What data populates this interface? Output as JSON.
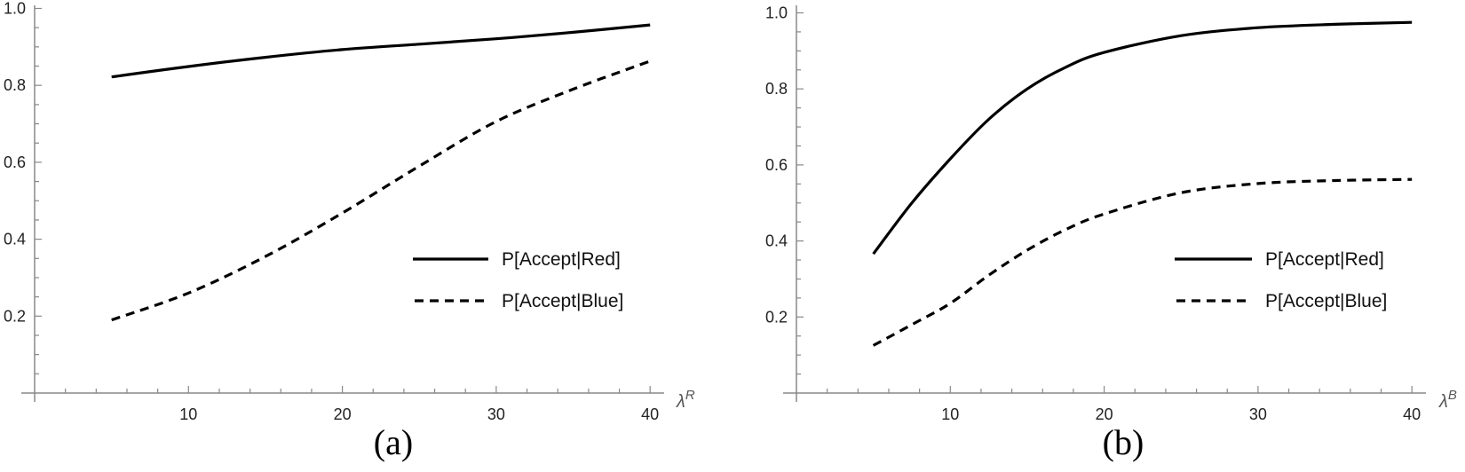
{
  "chart_data": [
    {
      "type": "line",
      "panel": "a",
      "caption": "(a)",
      "title": "",
      "xlabel": "λ",
      "xlabel_sup": "R",
      "ylabel": "",
      "xlim": [
        0,
        41
      ],
      "ylim": [
        0,
        1.0
      ],
      "xticks": [
        10,
        20,
        30,
        40
      ],
      "yticks": [
        0.2,
        0.4,
        0.6,
        0.8,
        1.0
      ],
      "ytick_labels": [
        "0.2",
        "0.4",
        "0.6",
        "0.8",
        "1.0"
      ],
      "xtick_labels": [
        "10",
        "20",
        "30",
        "40"
      ],
      "grid": false,
      "legend_position": "lower right",
      "x": [
        5,
        10,
        15,
        20,
        25,
        30,
        35,
        40
      ],
      "series": [
        {
          "name": "P[Accept|Red]",
          "style": "solid",
          "values": [
            0.822,
            0.849,
            0.873,
            0.893,
            0.907,
            0.921,
            0.938,
            0.957
          ]
        },
        {
          "name": "P[Accept|Blue]",
          "style": "dashed",
          "values": [
            0.19,
            0.26,
            0.355,
            0.468,
            0.59,
            0.706,
            0.79,
            0.863
          ]
        }
      ]
    },
    {
      "type": "line",
      "panel": "b",
      "caption": "(b)",
      "title": "",
      "xlabel": "λ",
      "xlabel_sup": "B",
      "ylabel": "",
      "xlim": [
        0,
        41
      ],
      "ylim": [
        0,
        1.0
      ],
      "xticks": [
        10,
        20,
        30,
        40
      ],
      "yticks": [
        0.2,
        0.4,
        0.6,
        0.8,
        1.0
      ],
      "ytick_labels": [
        "0.2",
        "0.4",
        "0.6",
        "0.8",
        "1.0"
      ],
      "xtick_labels": [
        "10",
        "20",
        "30",
        "40"
      ],
      "grid": false,
      "legend_position": "lower right",
      "x": [
        5,
        7.5,
        10,
        12.5,
        15,
        17.5,
        20,
        25,
        30,
        35,
        40
      ],
      "series": [
        {
          "name": "P[Accept|Red]",
          "style": "solid",
          "values": [
            0.366,
            0.5,
            0.616,
            0.72,
            0.8,
            0.857,
            0.896,
            0.94,
            0.961,
            0.97,
            0.975
          ]
        },
        {
          "name": "P[Accept|Blue]",
          "style": "dashed",
          "values": [
            0.125,
            0.18,
            0.236,
            0.31,
            0.376,
            0.43,
            0.471,
            0.527,
            0.551,
            0.559,
            0.562
          ]
        }
      ]
    }
  ],
  "panels": [
    {
      "caption": "(a)",
      "xlabel": "λ",
      "xlabel_sup": "R",
      "legend": [
        "P[Accept|Red]",
        "P[Accept|Blue]"
      ]
    },
    {
      "caption": "(b)",
      "xlabel": "λ",
      "xlabel_sup": "B",
      "legend": [
        "P[Accept|Red]",
        "P[Accept|Blue]"
      ]
    }
  ]
}
